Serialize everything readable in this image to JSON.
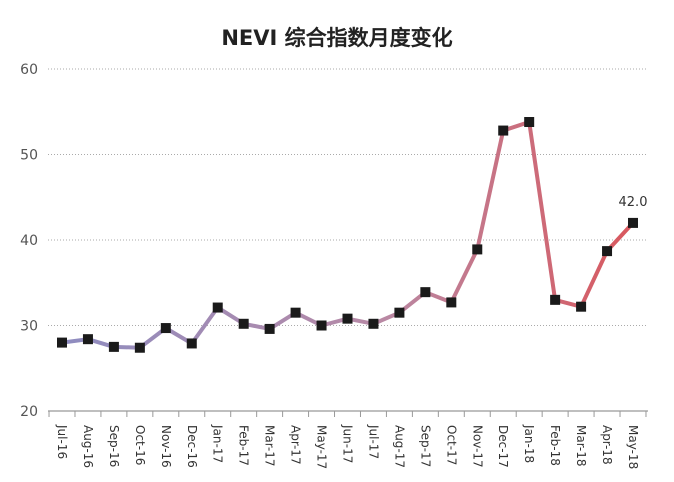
{
  "chart_data": {
    "type": "line",
    "title": "NEVI 综合指数月度变化",
    "xlabel": "",
    "ylabel": "",
    "ylim": [
      20,
      60
    ],
    "yticks": [
      20,
      30,
      40,
      50,
      60
    ],
    "grid": true,
    "categories": [
      "Jul-16",
      "Aug-16",
      "Sep-16",
      "Oct-16",
      "Nov-16",
      "Dec-16",
      "Jan-17",
      "Feb-17",
      "Mar-17",
      "Apr-17",
      "May-17",
      "Jun-17",
      "Jul-17",
      "Aug-17",
      "Sep-17",
      "Oct-17",
      "Nov-17",
      "Dec-17",
      "Jan-18",
      "Feb-18",
      "Mar-18",
      "Apr-18",
      "May-18"
    ],
    "series": [
      {
        "values": [
          28.0,
          28.4,
          27.5,
          27.4,
          29.7,
          27.9,
          32.1,
          30.2,
          29.6,
          31.5,
          30.0,
          30.8,
          30.2,
          31.5,
          33.9,
          32.7,
          38.9,
          52.8,
          53.8,
          33.0,
          32.2,
          38.7,
          42.0
        ]
      }
    ],
    "data_labels": [
      {
        "index": 22,
        "text": "42.0"
      }
    ],
    "colors": {
      "line_start": "#8e8cc0",
      "line_end": "#d9585e",
      "marker": "#1a1a1a",
      "grid": "#aaaaaa",
      "axis": "#999999"
    }
  }
}
